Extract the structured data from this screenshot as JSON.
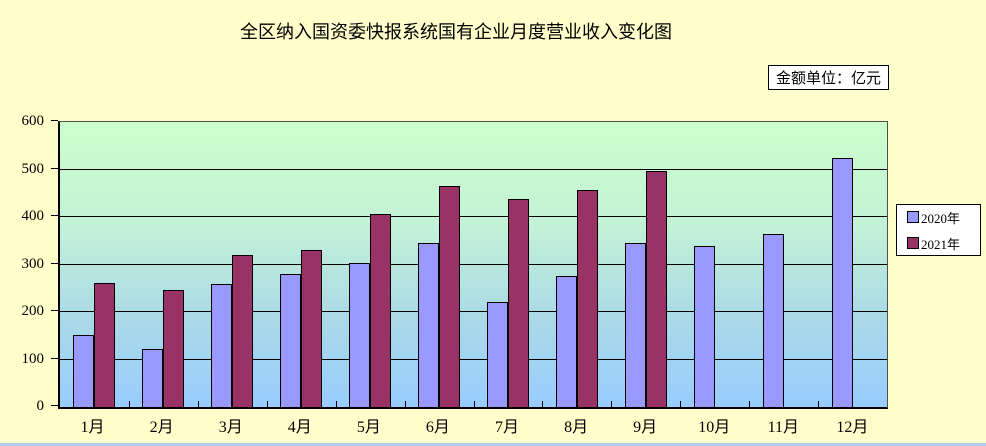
{
  "page": {
    "background_color": "#FFFFCC",
    "bottom_strip_color": "#AFCDEA"
  },
  "chart": {
    "title": "全区纳入国资委快报系统国有企业月度营业收入变化图",
    "unit_label": "金额单位：亿元"
  },
  "chart_data": {
    "type": "bar",
    "title": "全区纳入国资委快报系统国有企业月度营业收入变化图",
    "unit": "亿元",
    "categories": [
      "1月",
      "2月",
      "3月",
      "4月",
      "5月",
      "6月",
      "7月",
      "8月",
      "9月",
      "10月",
      "11月",
      "12月"
    ],
    "series": [
      {
        "name": "2020年",
        "color": "#9999FF",
        "values": [
          152,
          122,
          260,
          280,
          304,
          346,
          222,
          276,
          346,
          338,
          364,
          525
        ]
      },
      {
        "name": "2021年",
        "color": "#993366",
        "values": [
          262,
          247,
          319,
          330,
          407,
          466,
          437,
          456,
          497,
          null,
          null,
          null
        ]
      }
    ],
    "xlabel": "",
    "ylabel": "",
    "ylim": [
      0,
      600
    ],
    "yticks": [
      0,
      100,
      200,
      300,
      400,
      500,
      600
    ],
    "grid": true,
    "legend_position": "right",
    "plot_bg_gradient_top": "#CCFFCC",
    "plot_bg_gradient_bottom": "#99CCFF",
    "bar_border_color": "#000000"
  }
}
